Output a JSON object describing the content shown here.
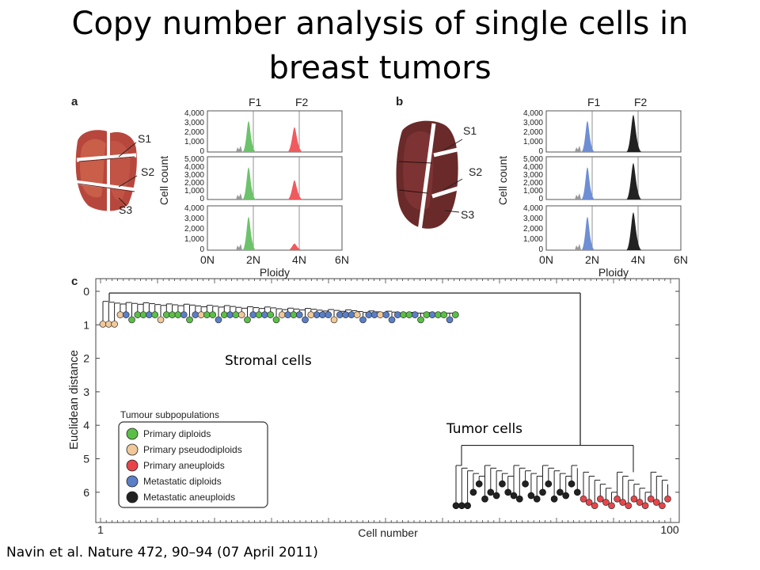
{
  "slide": {
    "title_line1": "Copy number analysis of single cells in",
    "title_line2": "breast tumors",
    "citation": "Navin et al. Nature 472, 90–94 (07 April 2011)",
    "overlay_stromal": "Stromal cells",
    "overlay_tumor": "Tumor cells"
  },
  "figure": {
    "panel_a": "a",
    "panel_b": "b",
    "panel_c": "c",
    "sections": [
      "S1",
      "S2",
      "S3"
    ],
    "fraction_labels": [
      "F1",
      "F2"
    ],
    "histogram_ylabel": "Cell count",
    "histogram_xlabel": "Ploidy",
    "ploidy_ticks": [
      "0N",
      "2N",
      "4N",
      "6N"
    ],
    "yticks_row1": [
      "4,000",
      "3,000",
      "2,000",
      "1,000",
      "0"
    ],
    "yticks_row2": [
      "5,000",
      "4,000",
      "3,000",
      "2,000",
      "1,000",
      "0"
    ],
    "yticks_row3": [
      "4,000",
      "3,000",
      "2,000",
      "1,000",
      "0"
    ],
    "tree_ylabel": "Euclidean distance",
    "tree_xlabel": "Cell number",
    "tree_yticks": [
      "0",
      "1",
      "2",
      "3",
      "4",
      "5",
      "6"
    ],
    "tree_xtick_start": "1",
    "tree_xtick_end": "100",
    "legend_title": "Tumour subpopulations",
    "legend": [
      {
        "label": "Primary diploids",
        "color": "#5bbf46"
      },
      {
        "label": "Primary pseudodiploids",
        "color": "#f0c89a"
      },
      {
        "label": "Primary aneuploids",
        "color": "#e8454a"
      },
      {
        "label": "Metastatic diploids",
        "color": "#5a7fc7"
      },
      {
        "label": "Metastatic aneuploids",
        "color": "#222222"
      }
    ],
    "colors": {
      "a_f1": "#6cc36a",
      "a_f2": "#ef5a5e",
      "b_f1": "#6f8fd4",
      "b_f2": "#222222"
    }
  }
}
